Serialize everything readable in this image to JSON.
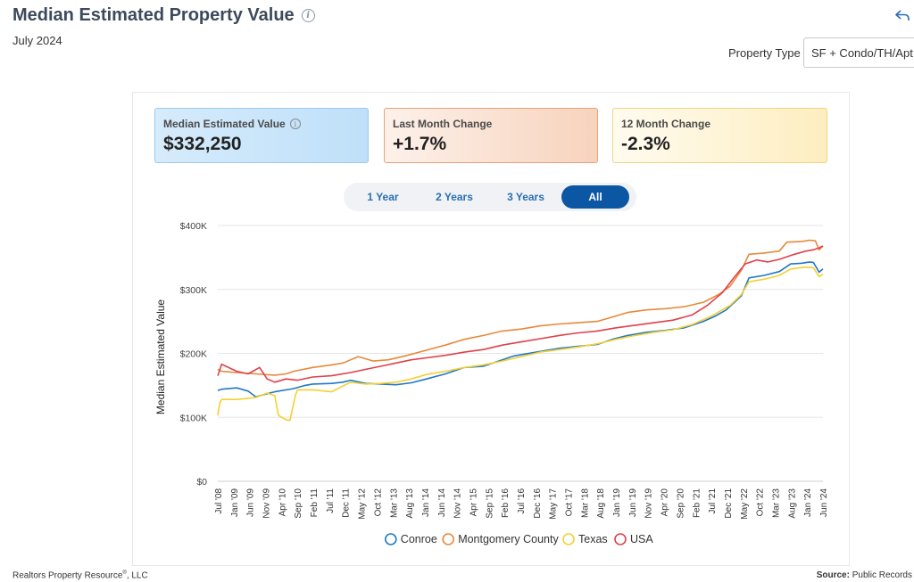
{
  "header": {
    "title": "Median Estimated Property Value",
    "subtitle": "July 2024",
    "property_type_label": "Property Type",
    "property_type_value": "SF + Condo/TH/Apt"
  },
  "cards": [
    {
      "label": "Median Estimated Value",
      "value": "$332,250"
    },
    {
      "label": "Last Month Change",
      "value": "+1.7%"
    },
    {
      "label": "12 Month Change",
      "value": "-2.3%"
    }
  ],
  "range_tabs": [
    {
      "label": "1 Year"
    },
    {
      "label": "2 Years"
    },
    {
      "label": "3 Years"
    },
    {
      "label": "All"
    }
  ],
  "footer": {
    "company": "Realtors Property Resource",
    "company_suffix": ", LLC",
    "reg_mark": "®",
    "source_label": "Source:",
    "source_value": "Public Records"
  },
  "colors": {
    "Conroe": "#1f78c8",
    "Montgomery County": "#e8893a",
    "Texas": "#f5d032",
    "USA": "#e0404a"
  },
  "chart_data": {
    "type": "line",
    "title": "",
    "ylabel": "Median Estimated Value",
    "xlabel": "",
    "ylim": [
      0,
      400000
    ],
    "yticks": [
      0,
      100000,
      200000,
      300000,
      400000
    ],
    "ytick_labels": [
      "$0",
      "$100K",
      "$200K",
      "$300K",
      "$400K"
    ],
    "x_range": [
      2008.5,
      2024.45
    ],
    "xtick_labels": [
      "Jul '08",
      "Jan '09",
      "Jun '09",
      "Nov '09",
      "Apr '10",
      "Sep '10",
      "Feb '11",
      "Jul '11",
      "Dec '11",
      "May '12",
      "Oct '12",
      "Mar '13",
      "Aug '13",
      "Jan '14",
      "Jun '14",
      "Nov '14",
      "Apr '15",
      "Sep '15",
      "Feb '16",
      "Jul '16",
      "Dec '16",
      "May '17",
      "Oct '17",
      "Mar '18",
      "Aug '18",
      "Jan '19",
      "Jun '19",
      "Nov '19",
      "Apr '20",
      "Sep '20",
      "Feb '21",
      "Jul '21",
      "Dec '21",
      "May '22",
      "Oct '22",
      "Mar '23",
      "Aug '23",
      "Jan '24",
      "Jun '24"
    ],
    "legend": [
      "Conroe",
      "Montgomery County",
      "Texas",
      "USA"
    ],
    "legend_position": "bottom",
    "series": [
      {
        "name": "Conroe",
        "x": [
          2008.5,
          2008.6,
          2009.0,
          2009.3,
          2009.5,
          2009.8,
          2010.0,
          2010.5,
          2010.8,
          2011.0,
          2011.5,
          2011.8,
          2012.0,
          2012.4,
          2012.8,
          2013.2,
          2013.6,
          2014.0,
          2014.5,
          2015.0,
          2015.5,
          2016.0,
          2016.3,
          2016.5,
          2017.0,
          2017.5,
          2018.0,
          2018.5,
          2018.9,
          2019.3,
          2019.8,
          2020.3,
          2020.8,
          2021.3,
          2021.6,
          2021.9,
          2022.3,
          2022.5,
          2022.9,
          2023.3,
          2023.6,
          2023.9,
          2024.1,
          2024.2,
          2024.35,
          2024.45
        ],
        "values": [
          142000,
          144000,
          146000,
          141000,
          132000,
          137000,
          140000,
          145000,
          150000,
          152000,
          153000,
          155000,
          158000,
          153000,
          152000,
          151000,
          154000,
          160000,
          168000,
          178000,
          180000,
          190000,
          196000,
          198000,
          203000,
          208000,
          211000,
          214000,
          222000,
          228000,
          233000,
          236000,
          240000,
          250000,
          258000,
          268000,
          290000,
          318000,
          322000,
          328000,
          340000,
          341000,
          343000,
          342000,
          327000,
          332000
        ]
      },
      {
        "name": "Montgomery County",
        "x": [
          2008.5,
          2008.6,
          2009.0,
          2009.5,
          2010.0,
          2010.3,
          2010.5,
          2011.0,
          2011.5,
          2011.8,
          2012.2,
          2012.6,
          2013.0,
          2013.5,
          2014.0,
          2014.5,
          2015.0,
          2015.5,
          2016.0,
          2016.5,
          2017.0,
          2017.5,
          2018.0,
          2018.5,
          2018.8,
          2019.3,
          2019.8,
          2020.3,
          2020.8,
          2021.3,
          2021.7,
          2022.0,
          2022.3,
          2022.5,
          2022.9,
          2023.3,
          2023.5,
          2023.9,
          2024.1,
          2024.25,
          2024.35,
          2024.45
        ],
        "values": [
          175000,
          172000,
          170000,
          168000,
          166000,
          168000,
          172000,
          178000,
          182000,
          185000,
          195000,
          188000,
          190000,
          197000,
          205000,
          213000,
          222000,
          228000,
          235000,
          238000,
          243000,
          246000,
          248000,
          250000,
          255000,
          264000,
          268000,
          270000,
          273000,
          280000,
          292000,
          305000,
          330000,
          355000,
          357000,
          360000,
          374000,
          375000,
          377000,
          376000,
          362000,
          368000
        ]
      },
      {
        "name": "Texas",
        "x": [
          2008.5,
          2008.55,
          2008.6,
          2009.0,
          2009.5,
          2009.8,
          2010.0,
          2010.1,
          2010.3,
          2010.4,
          2010.55,
          2010.6,
          2011.0,
          2011.5,
          2012.0,
          2012.4,
          2012.8,
          2013.2,
          2013.6,
          2014.0,
          2014.5,
          2015.0,
          2015.5,
          2016.0,
          2016.5,
          2017.0,
          2017.5,
          2018.0,
          2018.5,
          2019.0,
          2019.5,
          2020.0,
          2020.5,
          2021.0,
          2021.5,
          2022.0,
          2022.3,
          2022.5,
          2022.9,
          2023.3,
          2023.6,
          2024.0,
          2024.2,
          2024.35,
          2024.45
        ],
        "values": [
          103000,
          122000,
          128000,
          128000,
          131000,
          138000,
          134000,
          103000,
          96000,
          95000,
          135000,
          143000,
          143000,
          140000,
          155000,
          152000,
          153000,
          155000,
          160000,
          167000,
          172000,
          178000,
          182000,
          188000,
          195000,
          202000,
          206000,
          210000,
          215000,
          222000,
          228000,
          233000,
          237000,
          245000,
          258000,
          275000,
          292000,
          312000,
          316000,
          322000,
          332000,
          335000,
          334000,
          320000,
          324000
        ]
      },
      {
        "name": "USA",
        "x": [
          2008.5,
          2008.6,
          2009.0,
          2009.3,
          2009.6,
          2009.8,
          2010.0,
          2010.3,
          2010.6,
          2011.0,
          2011.5,
          2012.0,
          2012.4,
          2012.8,
          2013.2,
          2013.6,
          2014.0,
          2014.5,
          2015.0,
          2015.5,
          2016.0,
          2016.5,
          2017.0,
          2017.5,
          2018.0,
          2018.5,
          2019.0,
          2019.5,
          2020.0,
          2020.5,
          2021.0,
          2021.4,
          2021.8,
          2022.1,
          2022.4,
          2022.7,
          2023.0,
          2023.3,
          2023.7,
          2024.0,
          2024.2,
          2024.35,
          2024.45
        ],
        "values": [
          165000,
          183000,
          172000,
          168000,
          178000,
          160000,
          155000,
          160000,
          158000,
          163000,
          165000,
          170000,
          175000,
          180000,
          185000,
          190000,
          193000,
          197000,
          202000,
          206000,
          213000,
          218000,
          223000,
          228000,
          232000,
          235000,
          240000,
          244000,
          248000,
          252000,
          260000,
          275000,
          295000,
          318000,
          340000,
          346000,
          343000,
          347000,
          355000,
          360000,
          362000,
          365000,
          368000
        ]
      }
    ]
  }
}
